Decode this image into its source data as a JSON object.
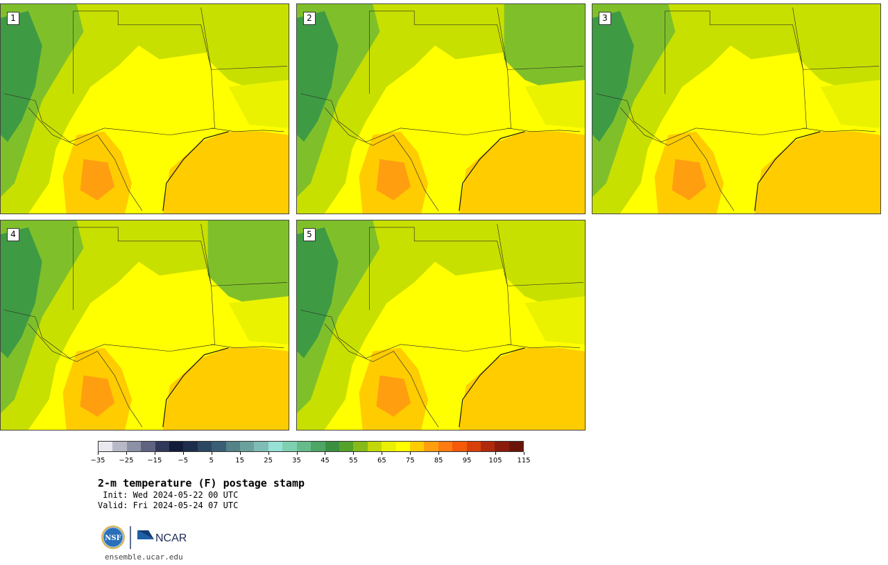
{
  "panels": [
    {
      "label": "1"
    },
    {
      "label": "2"
    },
    {
      "label": "3"
    },
    {
      "label": "4"
    },
    {
      "label": "5"
    }
  ],
  "colorbar": {
    "colors": [
      "#e8e8ee",
      "#b7b9c8",
      "#8d91a6",
      "#5e6480",
      "#30395a",
      "#121c38",
      "#1d2e4c",
      "#2c4762",
      "#3a5f75",
      "#538287",
      "#6aa09e",
      "#7fbcb8",
      "#98e0d5",
      "#7fd0b0",
      "#66bb8a",
      "#4fa565",
      "#3a9040",
      "#55a22a",
      "#86ba18",
      "#c2d80a",
      "#eaf004",
      "#ffff00",
      "#ffcc00",
      "#ff9f10",
      "#ff7a10",
      "#f45a0a",
      "#d8400a",
      "#b02a0c",
      "#8a1c0c",
      "#6a1408"
    ],
    "ticks": [
      "−35",
      "−25",
      "−15",
      "−5",
      "5",
      "15",
      "25",
      "35",
      "45",
      "55",
      "65",
      "75",
      "85",
      "95",
      "105",
      "115"
    ]
  },
  "title": "2-m temperature (F) postage stamp",
  "init_line": " Init: Wed 2024-05-22 00 UTC",
  "valid_line": "Valid: Fri 2024-05-24 07 UTC",
  "footer": {
    "url": "ensemble.ucar.edu",
    "logo_nsf": "NSF",
    "logo_ncar": "NCAR"
  },
  "map_colors": {
    "cool_high": "#3f9a44",
    "mid_green": "#7fc02a",
    "yellow_green": "#c8e000",
    "light_yellow": "#eaf200",
    "yellow": "#ffff00",
    "orange_light": "#ffcc00",
    "orange": "#ff9f10"
  }
}
